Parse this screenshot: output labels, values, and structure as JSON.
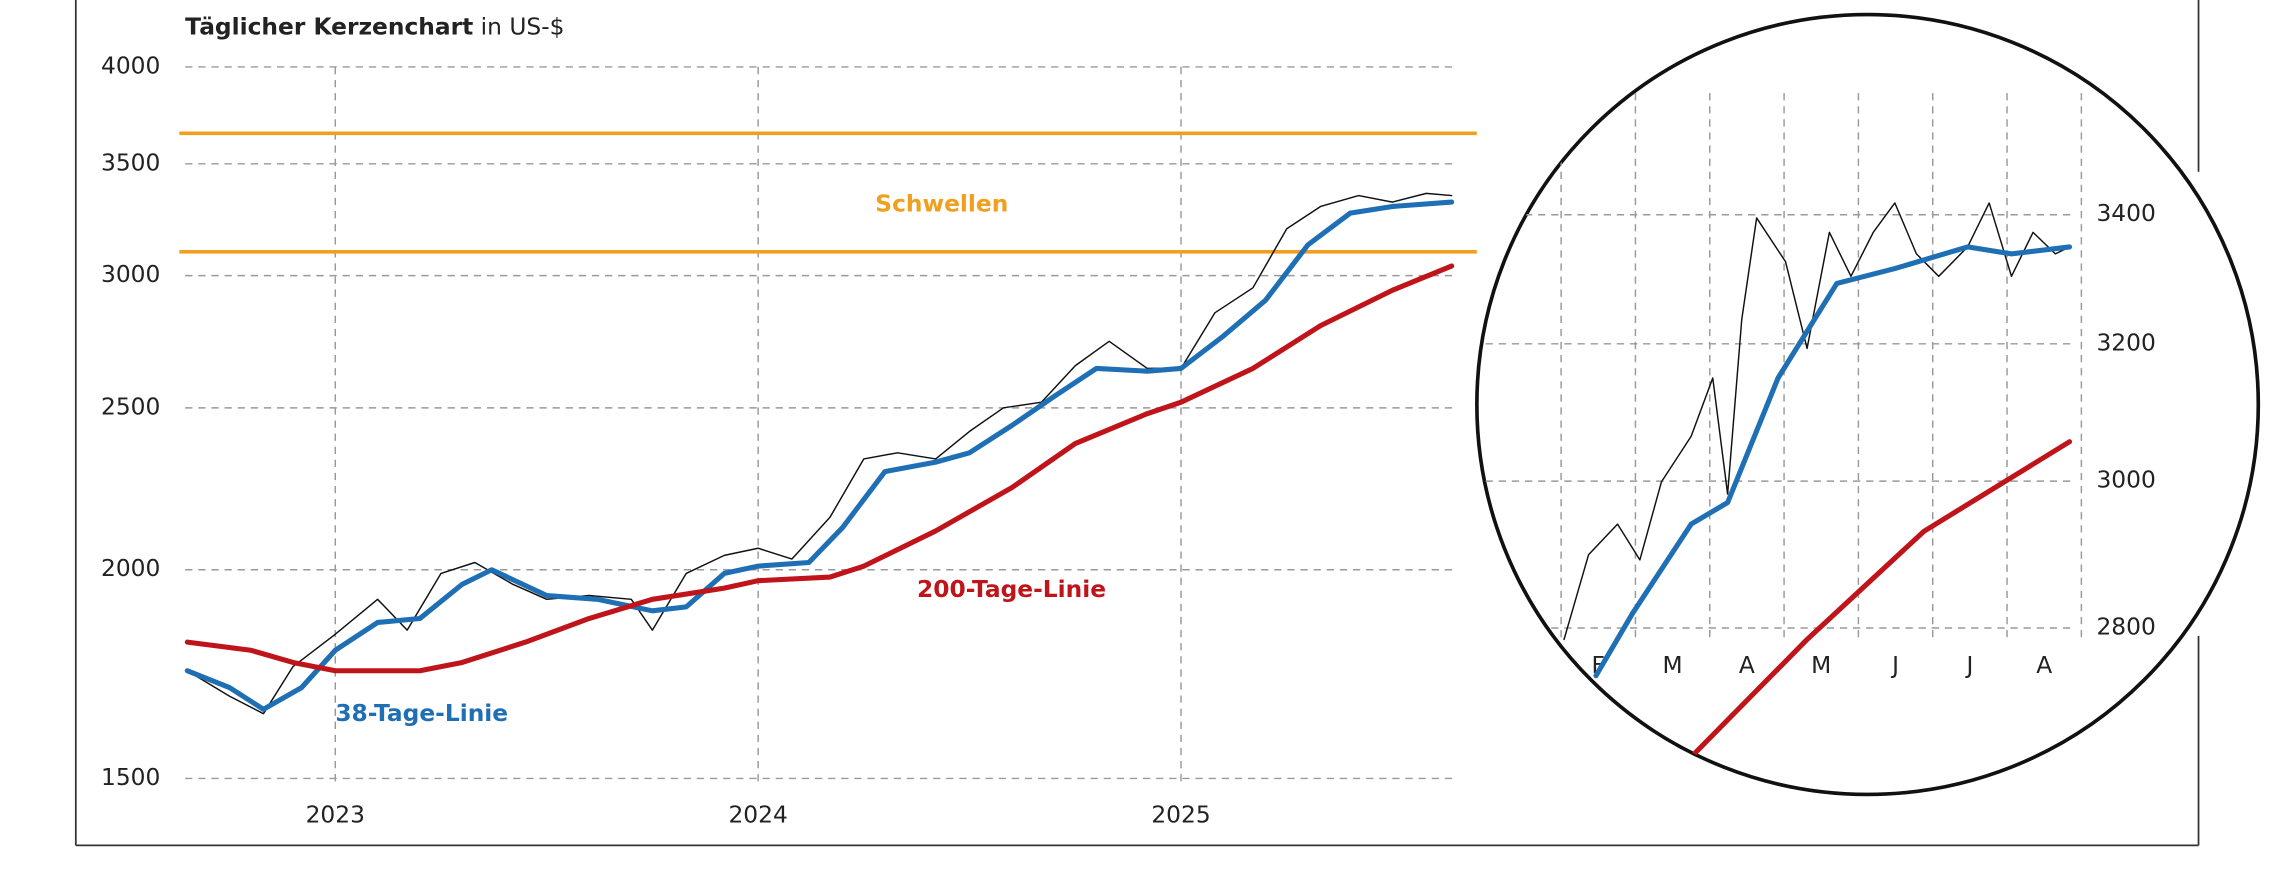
{
  "chart_data": [
    {
      "type": "line",
      "title": "Täglicher Kerzenchart",
      "subtitle": "in US-$",
      "log_scale": true,
      "grid": true,
      "xlim": [
        2022.645,
        2025.641
      ],
      "xticks": [
        2023,
        2024,
        2025
      ],
      "ylim": [
        1500,
        4000
      ],
      "yticks": [
        1500,
        2000,
        2500,
        3000,
        3500,
        4000
      ],
      "thresholds": {
        "label": "Schwellen",
        "color": "#f0a01e",
        "values": [
          3650,
          3100
        ]
      },
      "series": [
        {
          "color": "#111111",
          "x": [
            2022.65,
            2022.75,
            2022.83,
            2022.9,
            2023.0,
            2023.1,
            2023.17,
            2023.25,
            2023.33,
            2023.42,
            2023.5,
            2023.6,
            2023.7,
            2023.75,
            2023.83,
            2023.92,
            2024.0,
            2024.08,
            2024.17,
            2024.25,
            2024.33,
            2024.42,
            2024.5,
            2024.58,
            2024.67,
            2024.75,
            2024.83,
            2024.92,
            2025.0,
            2025.08,
            2025.17,
            2025.25,
            2025.33,
            2025.42,
            2025.5,
            2025.58,
            2025.64
          ],
          "values": [
            1740,
            1680,
            1640,
            1750,
            1830,
            1920,
            1840,
            1990,
            2020,
            1960,
            1920,
            1930,
            1920,
            1840,
            1990,
            2040,
            2060,
            2030,
            2150,
            2330,
            2350,
            2330,
            2420,
            2500,
            2520,
            2650,
            2740,
            2640,
            2640,
            2850,
            2950,
            3200,
            3300,
            3350,
            3320,
            3360,
            3350
          ]
        },
        {
          "name": "38-Tage-Linie",
          "color": "#1f6fb5",
          "x": [
            2022.65,
            2022.75,
            2022.83,
            2022.92,
            2023.0,
            2023.1,
            2023.2,
            2023.3,
            2023.37,
            2023.5,
            2023.62,
            2023.75,
            2023.83,
            2023.92,
            2024.0,
            2024.12,
            2024.2,
            2024.3,
            2024.42,
            2024.5,
            2024.6,
            2024.7,
            2024.8,
            2024.92,
            2025.0,
            2025.1,
            2025.2,
            2025.3,
            2025.4,
            2025.5,
            2025.64
          ],
          "values": [
            1740,
            1700,
            1650,
            1700,
            1790,
            1860,
            1870,
            1960,
            2000,
            1930,
            1920,
            1890,
            1900,
            1990,
            2010,
            2020,
            2120,
            2290,
            2320,
            2350,
            2440,
            2540,
            2640,
            2630,
            2640,
            2760,
            2900,
            3130,
            3270,
            3300,
            3320
          ]
        },
        {
          "name": "200-Tage-Linie",
          "color": "#c0141b",
          "x": [
            2022.65,
            2022.8,
            2022.9,
            2023.0,
            2023.2,
            2023.3,
            2023.45,
            2023.6,
            2023.75,
            2023.92,
            2024.0,
            2024.17,
            2024.25,
            2024.42,
            2024.6,
            2024.75,
            2024.92,
            2025.0,
            2025.17,
            2025.33,
            2025.5,
            2025.64
          ],
          "values": [
            1810,
            1790,
            1760,
            1740,
            1740,
            1760,
            1810,
            1870,
            1920,
            1950,
            1970,
            1980,
            2010,
            2110,
            2240,
            2380,
            2480,
            2520,
            2640,
            2800,
            2940,
            3040
          ]
        }
      ]
    },
    {
      "type": "line",
      "log_scale": true,
      "grid": true,
      "xlim": [
        1.2,
        8.85
      ],
      "xticks": [
        {
          "value": 2.5,
          "label": "F"
        },
        {
          "value": 3.5,
          "label": "M"
        },
        {
          "value": 4.5,
          "label": "A"
        },
        {
          "value": 5.5,
          "label": "M"
        },
        {
          "value": 6.5,
          "label": "J"
        },
        {
          "value": 7.5,
          "label": "J"
        },
        {
          "value": 8.5,
          "label": "A"
        }
      ],
      "ylim": [
        2600,
        3600
      ],
      "yticks": [
        2800,
        3000,
        3200,
        3400
      ],
      "series": [
        {
          "color": "#111111",
          "x": [
            2.04,
            2.37,
            2.76,
            3.06,
            3.35,
            3.75,
            4.04,
            4.24,
            4.43,
            4.63,
            5.02,
            5.31,
            5.61,
            5.9,
            6.2,
            6.49,
            6.78,
            7.08,
            7.47,
            7.76,
            8.06,
            8.35,
            8.65,
            8.84
          ],
          "values": [
            2785,
            2898,
            2940,
            2891,
            2999,
            3064,
            3149,
            2982,
            3237,
            3395,
            3326,
            3193,
            3372,
            3303,
            3372,
            3419,
            3338,
            3303,
            3349,
            3419,
            3303,
            3372,
            3338,
            3349
          ]
        },
        {
          "color": "#1f6fb5",
          "x": [
            2.47,
            2.96,
            3.75,
            4.24,
            4.92,
            5.71,
            6.49,
            7.47,
            8.06,
            8.84
          ],
          "values": [
            2738,
            2819,
            2940,
            2970,
            3149,
            3292,
            3315,
            3349,
            3338,
            3349
          ]
        },
        {
          "color": "#c0141b",
          "x": [
            3.8,
            5.31,
            6.88,
            8.84
          ],
          "values": [
            2640,
            2785,
            2930,
            3056
          ]
        }
      ]
    }
  ]
}
